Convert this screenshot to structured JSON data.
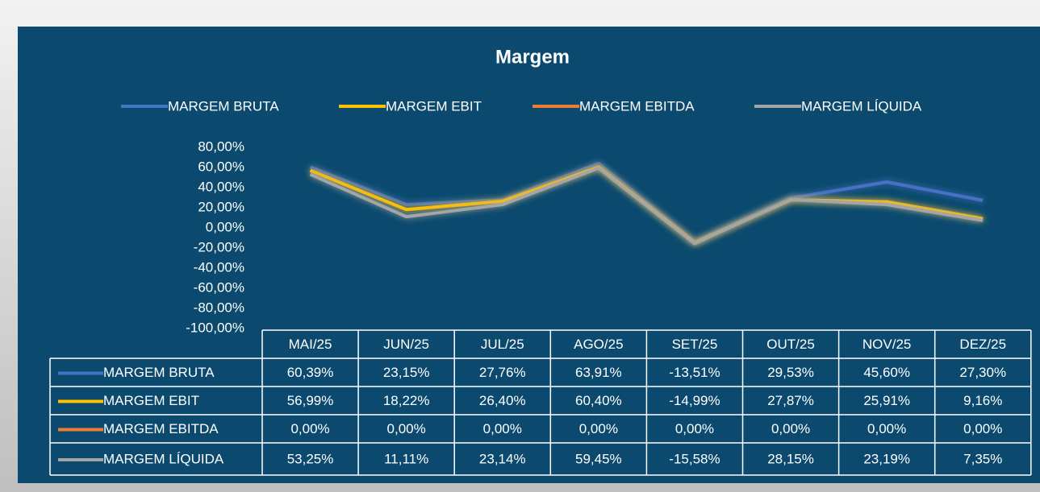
{
  "chart_data": {
    "type": "line",
    "title": "Margem",
    "categories": [
      "MAI/25",
      "JUN/25",
      "JUL/25",
      "AGO/25",
      "SET/25",
      "OUT/25",
      "NOV/25",
      "DEZ/25"
    ],
    "series": [
      {
        "name": "MARGEM BRUTA",
        "color": "#4472c4",
        "values": [
          60.39,
          23.15,
          27.76,
          63.91,
          -13.51,
          29.53,
          45.6,
          27.3
        ],
        "value_labels": [
          "60,39%",
          "23,15%",
          "27,76%",
          "63,91%",
          "-13,51%",
          "29,53%",
          "45,60%",
          "27,30%"
        ]
      },
      {
        "name": "MARGEM EBIT",
        "color": "#ffc000",
        "values": [
          56.99,
          18.22,
          26.4,
          60.4,
          -14.99,
          27.87,
          25.91,
          9.16
        ],
        "value_labels": [
          "56,99%",
          "18,22%",
          "26,40%",
          "60,40%",
          "-14,99%",
          "27,87%",
          "25,91%",
          "9,16%"
        ]
      },
      {
        "name": "MARGEM EBITDA",
        "color": "#ed7d31",
        "values": [
          0,
          0,
          0,
          0,
          0,
          0,
          0,
          0
        ],
        "value_labels": [
          "0,00%",
          "0,00%",
          "0,00%",
          "0,00%",
          "0,00%",
          "0,00%",
          "0,00%",
          "0,00%"
        ]
      },
      {
        "name": "MARGEM LÍQUIDA",
        "color": "#a5a5a5",
        "values": [
          53.25,
          11.11,
          23.14,
          59.45,
          -15.58,
          28.15,
          23.19,
          7.35
        ],
        "value_labels": [
          "53,25%",
          "11,11%",
          "23,14%",
          "59,45%",
          "-15,58%",
          "28,15%",
          "23,19%",
          "7,35%"
        ]
      }
    ],
    "ylim": [
      -100,
      80
    ],
    "yticks": [
      {
        "value": 80,
        "label": "80,00%"
      },
      {
        "value": 60,
        "label": "60,00%"
      },
      {
        "value": 40,
        "label": "40,00%"
      },
      {
        "value": 20,
        "label": "20,00%"
      },
      {
        "value": 0,
        "label": "0,00%"
      },
      {
        "value": -20,
        "label": "-20,00%"
      },
      {
        "value": -40,
        "label": "-40,00%"
      },
      {
        "value": -60,
        "label": "-60,00%"
      },
      {
        "value": -80,
        "label": "-80,00%"
      },
      {
        "value": -100,
        "label": "-100,00%"
      }
    ],
    "legend": "top",
    "grid": false
  }
}
